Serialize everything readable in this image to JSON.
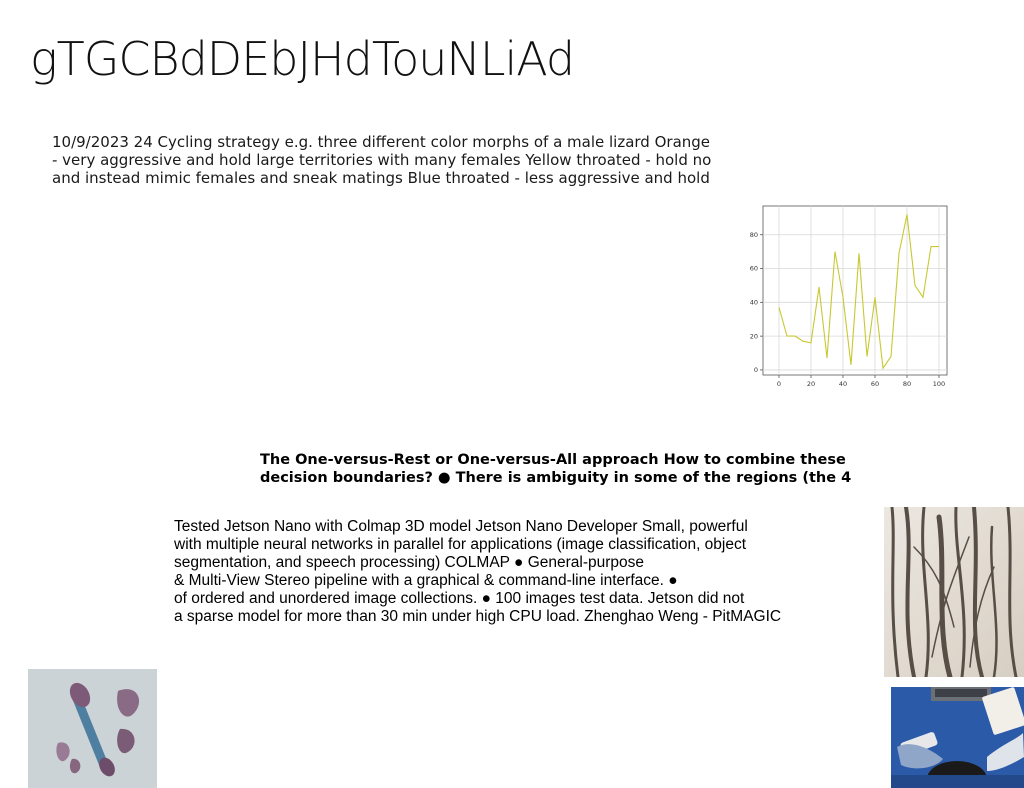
{
  "title": "gTGCBdDEbJHdTouNLiAd",
  "paragraph1": {
    "lines": [
      "10/9/2023 24 Cycling strategy e.g. three different color morphs of a male lizard Orange",
      "- very aggressive and hold large territories with many females Yellow throated - hold no",
      "and instead mimic females and sneak matings Blue throated - less aggressive and hold"
    ]
  },
  "paragraph2": {
    "lines": [
      "The One-versus-Rest or One-versus-All approach How to combine these",
      "decision boundaries? ● There is ambiguity in some of the regions (the 4"
    ]
  },
  "paragraph3": {
    "lines": [
      "Tested Jetson Nano with Colmap 3D model Jetson Nano Developer Small, powerful",
      "with multiple neural networks in parallel for applications (image classification, object",
      "segmentation, and speech processing) COLMAP ● General-purpose",
      "& Multi-View Stereo pipeline with a graphical & command-line interface. ●",
      "of ordered and unordered image collections. ● 100 images test data. Jetson did not",
      "a sparse model for more than 30 min under high CPU load. Zhenghao Weng - PitMAGIC"
    ]
  },
  "chart_data": {
    "type": "line",
    "x": [
      0,
      5,
      10,
      15,
      20,
      25,
      30,
      35,
      40,
      45,
      50,
      55,
      60,
      65,
      70,
      75,
      80,
      85,
      90,
      95,
      100
    ],
    "series": [
      {
        "values": [
          37,
          20,
          20,
          17,
          16,
          49,
          7,
          70,
          43,
          3,
          69,
          8,
          43,
          1,
          8,
          69,
          92,
          50,
          43,
          73,
          73
        ]
      }
    ],
    "x_ticks": [
      "0",
      "20",
      "40",
      "60",
      "80",
      "100"
    ],
    "y_ticks": [
      "0",
      "20",
      "40",
      "60",
      "80"
    ],
    "xlim": [
      -10,
      105
    ],
    "ylim": [
      -3,
      97
    ],
    "grid": true,
    "color": "#c8c832"
  },
  "images": {
    "rollers": {
      "icon": "jade-roller-photo"
    },
    "branches": {
      "icon": "branches-photo"
    },
    "desk": {
      "icon": "desk-laptop-photo"
    }
  }
}
